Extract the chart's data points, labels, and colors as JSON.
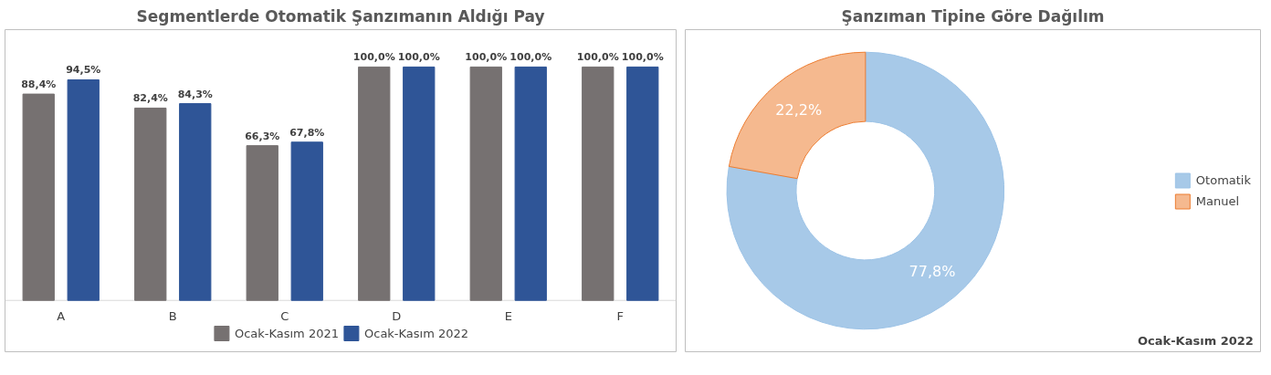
{
  "chart_data": [
    {
      "type": "bar",
      "title": "Segmentlerde Otomatik Şanzımanın Aldığı Pay",
      "categories": [
        "A",
        "B",
        "C",
        "D",
        "E",
        "F"
      ],
      "series": [
        {
          "name": "Ocak-Kasım 2021",
          "color": "#767171",
          "values": [
            88.4,
            82.4,
            66.3,
            100.0,
            100.0,
            100.0
          ],
          "value_labels": [
            "88,4%",
            "82,4%",
            "66,3%",
            "100,0%",
            "100,0%",
            "100,0%"
          ]
        },
        {
          "name": "Ocak-Kasım 2022",
          "color": "#2f5597",
          "values": [
            94.5,
            84.3,
            67.8,
            100.0,
            100.0,
            100.0
          ],
          "value_labels": [
            "94,5%",
            "84,3%",
            "67,8%",
            "100,0%",
            "100,0%",
            "100,0%"
          ]
        }
      ],
      "legend": "bottom",
      "grid": false
    },
    {
      "type": "donut",
      "title": "Şanzıman Tipine Göre Dağılım",
      "categories": [
        "Otomatik",
        "Manuel"
      ],
      "values": [
        77.8,
        22.2
      ],
      "colors": [
        "#9dc3e6",
        "#f4b183"
      ],
      "value_labels": [
        "77,8%",
        "22,2%"
      ],
      "legend": "right",
      "annotations": [
        "Ocak-Kasım 2022"
      ]
    }
  ]
}
